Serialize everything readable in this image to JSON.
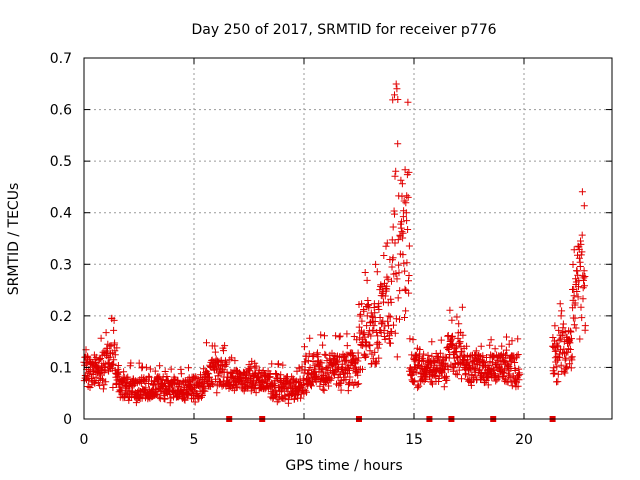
{
  "chart_data": {
    "type": "scatter",
    "title": "Day 250 of 2017, SRMTID for receiver p776",
    "xlabel": "GPS time / hours",
    "ylabel": "SRMTID / TECUs",
    "xlim": [
      0,
      24
    ],
    "ylim": [
      0,
      0.7
    ],
    "xticks": [
      0,
      5,
      10,
      15,
      20
    ],
    "yticks": [
      0,
      0.1,
      0.2,
      0.3,
      0.4,
      0.5,
      0.6,
      0.7
    ],
    "xtick_labels": [
      "0",
      "5",
      "10",
      "15",
      "20"
    ],
    "ytick_labels": [
      "0",
      "0.1",
      "0.2",
      "0.3",
      "0.4",
      "0.5",
      "0.6",
      "0.7"
    ],
    "grid": true,
    "marker": "+",
    "color": "#e00000",
    "series_envelope": [
      {
        "x0": 0.0,
        "x1": 0.8,
        "lo": 0.05,
        "hi": 0.16
      },
      {
        "x0": 0.8,
        "x1": 1.6,
        "lo": 0.05,
        "hi": 0.2
      },
      {
        "x0": 1.6,
        "x1": 3.5,
        "lo": 0.03,
        "hi": 0.11
      },
      {
        "x0": 3.5,
        "x1": 5.5,
        "lo": 0.03,
        "hi": 0.11
      },
      {
        "x0": 5.5,
        "x1": 6.5,
        "lo": 0.05,
        "hi": 0.15
      },
      {
        "x0": 6.5,
        "x1": 8.5,
        "lo": 0.05,
        "hi": 0.12
      },
      {
        "x0": 8.5,
        "x1": 10.0,
        "lo": 0.03,
        "hi": 0.11
      },
      {
        "x0": 10.0,
        "x1": 12.5,
        "lo": 0.05,
        "hi": 0.17
      },
      {
        "x0": 12.5,
        "x1": 13.4,
        "lo": 0.08,
        "hi": 0.3
      },
      {
        "x0": 13.4,
        "x1": 14.0,
        "lo": 0.12,
        "hi": 0.35
      },
      {
        "x0": 14.0,
        "x1": 14.8,
        "lo": 0.12,
        "hi": 0.68
      },
      {
        "x0": 14.8,
        "x1": 16.5,
        "lo": 0.06,
        "hi": 0.16
      },
      {
        "x0": 16.5,
        "x1": 17.3,
        "lo": 0.07,
        "hi": 0.22
      },
      {
        "x0": 17.3,
        "x1": 19.8,
        "lo": 0.06,
        "hi": 0.16
      },
      {
        "x0": 21.3,
        "x1": 22.2,
        "lo": 0.07,
        "hi": 0.23
      },
      {
        "x0": 22.2,
        "x1": 22.8,
        "lo": 0.15,
        "hi": 0.45
      }
    ],
    "gaps": [
      {
        "x0": 19.8,
        "x1": 21.3
      }
    ],
    "zero_markers_x": [
      6.6,
      8.1,
      12.5,
      15.7,
      16.7,
      18.6,
      21.3
    ]
  }
}
